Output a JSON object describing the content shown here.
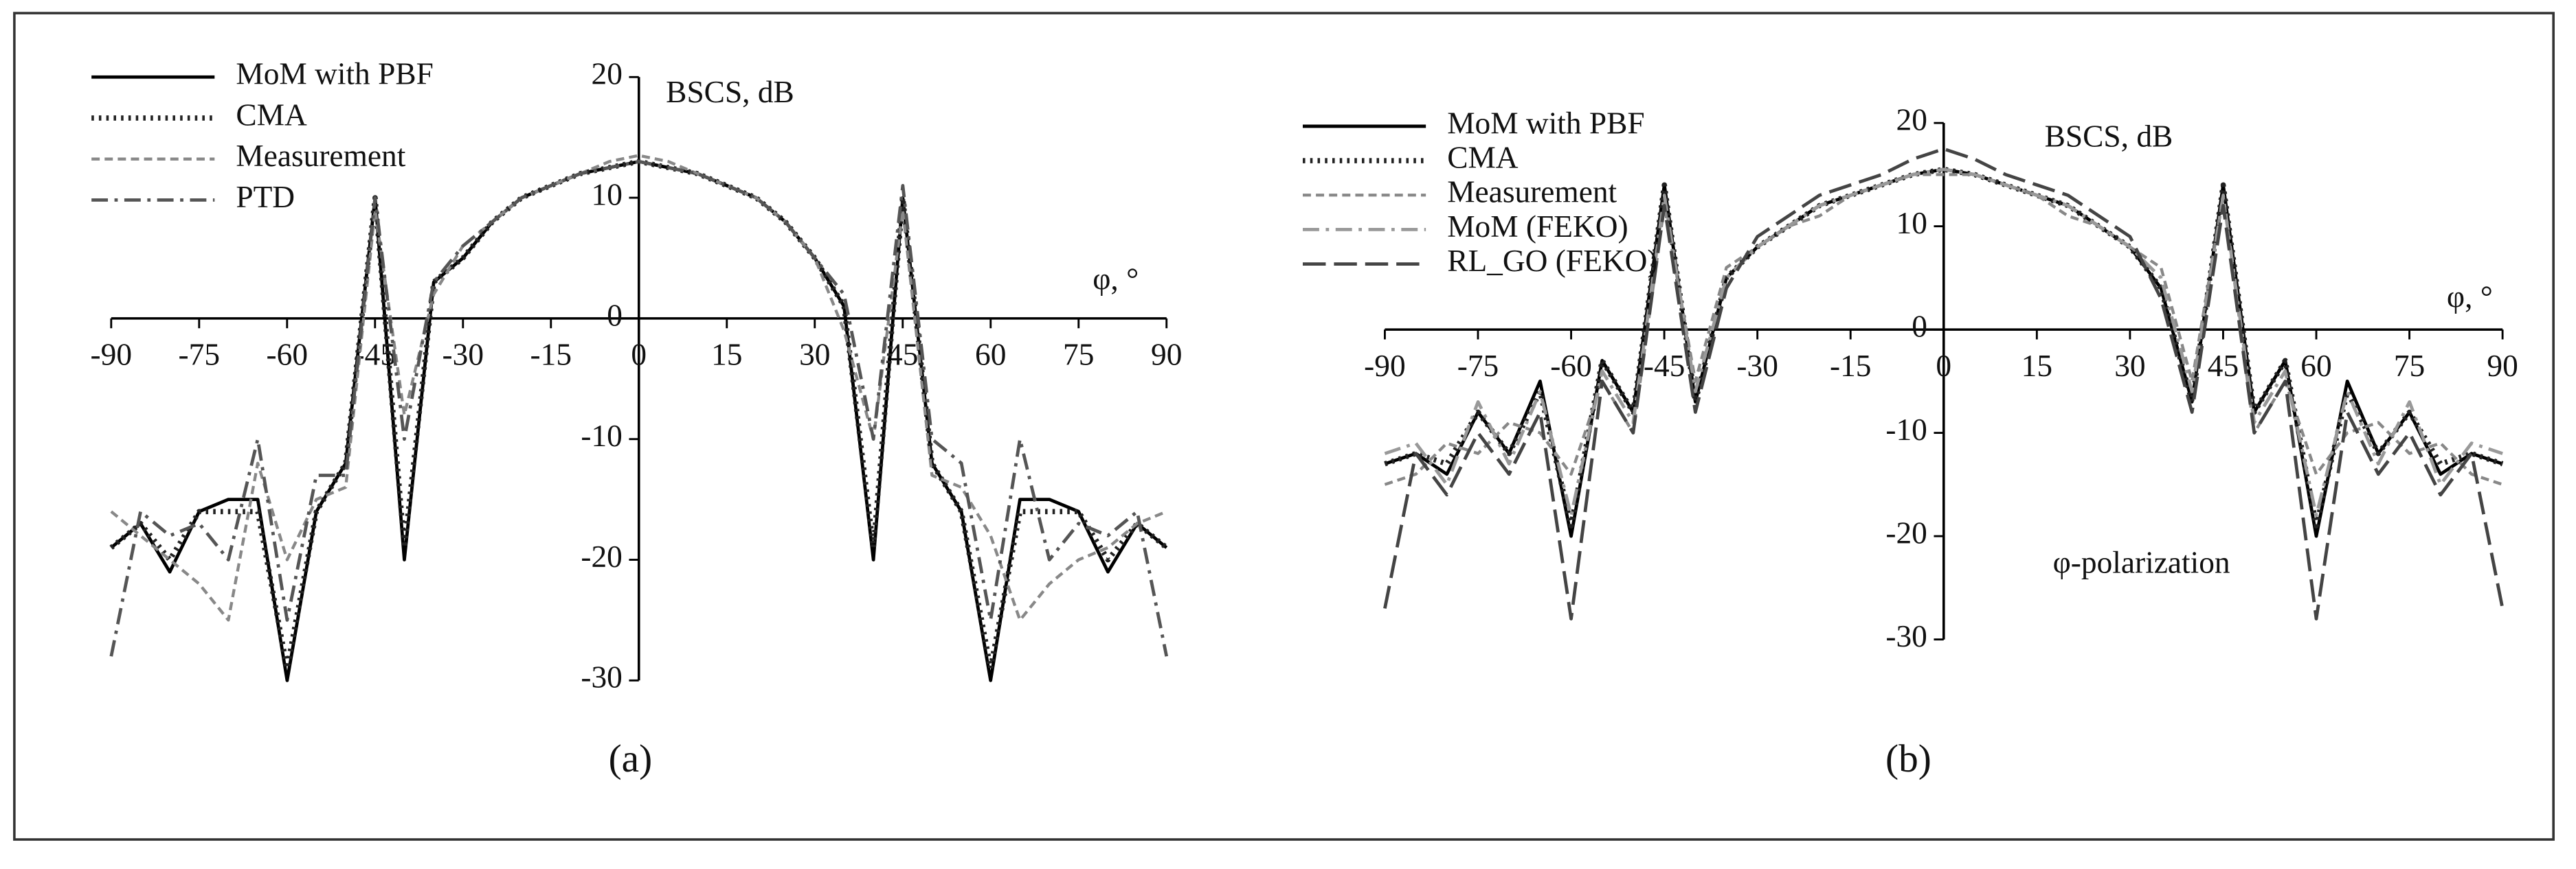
{
  "chart_data": [
    {
      "type": "line",
      "caption": "(a)",
      "y_label": "BSCS, dB",
      "x_label": "φ, °",
      "legend": "top-left",
      "xlim": [
        -90,
        90
      ],
      "ylim": [
        -30,
        20
      ],
      "xticks": [
        -90,
        -75,
        -60,
        -45,
        -30,
        -15,
        0,
        15,
        30,
        45,
        60,
        75,
        90
      ],
      "yticks": [
        -30,
        -20,
        -10,
        0,
        10,
        20
      ],
      "x": [
        -90,
        -85,
        -80,
        -75,
        -70,
        -65,
        -60,
        -55,
        -50,
        -45,
        -40,
        -35,
        -30,
        -25,
        -20,
        -15,
        -10,
        -5,
        0,
        5,
        10,
        15,
        20,
        25,
        30,
        35,
        40,
        45,
        50,
        55,
        60,
        65,
        70,
        75,
        80,
        85,
        90
      ],
      "series": [
        {
          "name": "MoM with PBF",
          "color": "#000000",
          "line_style": "solid",
          "values": [
            -19,
            -17,
            -21,
            -16,
            -15,
            -15,
            -30,
            -16,
            -12,
            10,
            -20,
            3,
            5,
            8,
            10,
            11,
            12,
            12.5,
            13,
            12.5,
            12,
            11,
            10,
            8,
            5,
            1,
            -20,
            10,
            -12,
            -16,
            -30,
            -15,
            -15,
            -16,
            -21,
            -17,
            -19
          ]
        },
        {
          "name": "CMA",
          "color": "#222222",
          "line_style": "dotted",
          "values": [
            -19,
            -17,
            -20,
            -16,
            -16,
            -16,
            -29,
            -16,
            -12,
            10,
            -19,
            3,
            5,
            8,
            10,
            11,
            12,
            12.5,
            13,
            12.5,
            12,
            11,
            10,
            8,
            5,
            1,
            -19,
            10,
            -12,
            -16,
            -29,
            -16,
            -16,
            -16,
            -20,
            -17,
            -19
          ]
        },
        {
          "name": "Measurement",
          "color": "#888888",
          "line_style": "dashed",
          "values": [
            -16,
            -18,
            -20,
            -22,
            -25,
            -12,
            -20,
            -15,
            -14,
            9,
            -8,
            2,
            6,
            8,
            10,
            11,
            12,
            13,
            13.5,
            13,
            12,
            11,
            10,
            8,
            5,
            -1,
            -10,
            9,
            -13,
            -14,
            -18,
            -25,
            -22,
            -20,
            -19,
            -17,
            -16
          ]
        },
        {
          "name": "PTD",
          "color": "#555555",
          "line_style": "dashdot",
          "values": [
            -28,
            -16,
            -18,
            -17,
            -20,
            -10,
            -25,
            -13,
            -13,
            10,
            -10,
            3,
            6,
            8,
            10,
            11,
            12,
            12.5,
            13,
            12.5,
            12,
            11,
            10,
            8,
            5,
            2,
            -10,
            11,
            -10,
            -12,
            -25,
            -10,
            -20,
            -17,
            -18,
            -16,
            -28
          ]
        }
      ]
    },
    {
      "type": "line",
      "caption": "(b)",
      "y_label": "BSCS, dB",
      "x_label": "φ, °",
      "annotation": "φ-polarization",
      "legend": "top-left",
      "xlim": [
        -90,
        90
      ],
      "ylim": [
        -30,
        20
      ],
      "xticks": [
        -90,
        -75,
        -60,
        -45,
        -30,
        -15,
        0,
        15,
        30,
        45,
        60,
        75,
        90
      ],
      "yticks": [
        -30,
        -20,
        -10,
        0,
        10,
        20
      ],
      "x": [
        -90,
        -85,
        -80,
        -75,
        -70,
        -65,
        -60,
        -55,
        -50,
        -45,
        -40,
        -35,
        -30,
        -25,
        -20,
        -15,
        -10,
        -5,
        0,
        5,
        10,
        15,
        20,
        25,
        30,
        35,
        40,
        45,
        50,
        55,
        60,
        65,
        70,
        75,
        80,
        85,
        90
      ],
      "series": [
        {
          "name": "MoM with PBF",
          "color": "#000000",
          "line_style": "solid",
          "values": [
            -13,
            -12,
            -14,
            -8,
            -12,
            -5,
            -20,
            -3,
            -8,
            14,
            -7,
            5,
            8,
            10,
            12,
            13,
            14,
            15,
            15.5,
            15,
            14,
            13,
            12,
            10,
            8,
            4,
            -7,
            14,
            -8,
            -3,
            -20,
            -5,
            -12,
            -8,
            -14,
            -12,
            -13
          ]
        },
        {
          "name": "CMA",
          "color": "#222222",
          "line_style": "dotted",
          "values": [
            -13,
            -12,
            -13,
            -8,
            -12,
            -6,
            -19,
            -3,
            -8,
            14,
            -7,
            5,
            8,
            10,
            12,
            13,
            14,
            15,
            15.5,
            15,
            14,
            13,
            12,
            10,
            8,
            4,
            -7,
            14,
            -8,
            -3,
            -19,
            -6,
            -12,
            -8,
            -13,
            -12,
            -13
          ]
        },
        {
          "name": "Measurement",
          "color": "#888888",
          "line_style": "dashed",
          "values": [
            -15,
            -14,
            -11,
            -12,
            -9,
            -10,
            -14,
            -5,
            -10,
            12,
            -5,
            6,
            8,
            10,
            11,
            13,
            14,
            15,
            15,
            15,
            14,
            13,
            11,
            10,
            8,
            6,
            -5,
            13,
            -10,
            -5,
            -14,
            -10,
            -9,
            -12,
            -11,
            -14,
            -15
          ]
        },
        {
          "name": "MoM (FEKO)",
          "color": "#999999",
          "line_style": "dashdot",
          "values": [
            -12,
            -11,
            -15,
            -7,
            -13,
            -6,
            -18,
            -4,
            -9,
            13,
            -6,
            5,
            8,
            10,
            12,
            13,
            14,
            15,
            15.5,
            15,
            14,
            13,
            12,
            10,
            8,
            5,
            -6,
            13,
            -9,
            -4,
            -18,
            -6,
            -13,
            -7,
            -15,
            -11,
            -12
          ]
        },
        {
          "name": "RL_GO (FEKO)",
          "color": "#444444",
          "line_style": "longdash",
          "values": [
            -27,
            -12,
            -16,
            -10,
            -14,
            -8,
            -28,
            -5,
            -10,
            12,
            -8,
            4,
            9,
            11,
            13,
            14,
            15,
            16.5,
            17.5,
            16.5,
            15,
            14,
            13,
            11,
            9,
            3,
            -8,
            12,
            -10,
            -5,
            -28,
            -8,
            -14,
            -10,
            -16,
            -12,
            -27
          ]
        }
      ]
    }
  ]
}
